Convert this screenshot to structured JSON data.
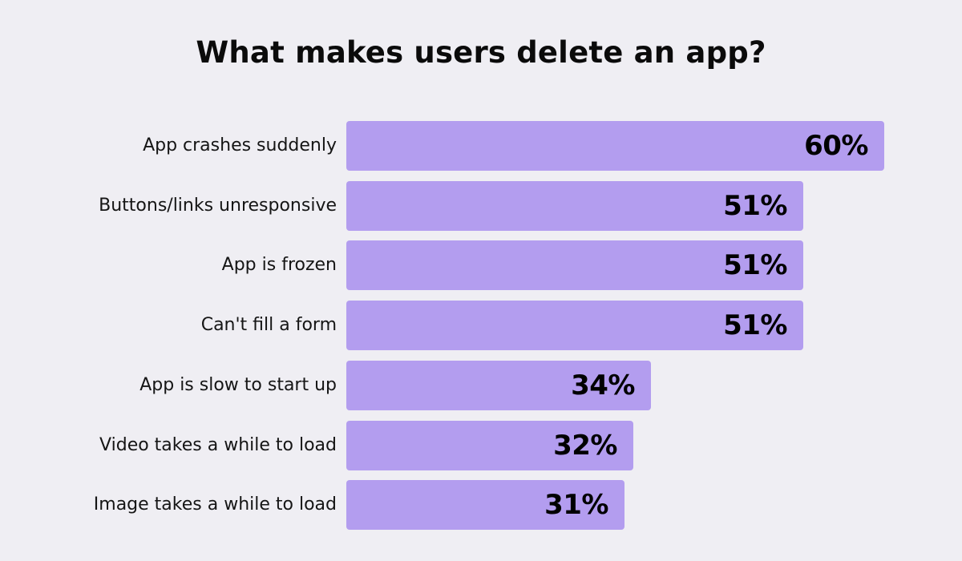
{
  "title": "What makes users delete an app?",
  "colors": {
    "background": "#EFEEF3",
    "bar": "#B39DEF",
    "text": "#111111"
  },
  "rows": [
    {
      "label": "App crashes suddenly",
      "value": 60,
      "value_label": "60%"
    },
    {
      "label": "Buttons/links unresponsive",
      "value": 51,
      "value_label": "51%"
    },
    {
      "label": "App is frozen",
      "value": 51,
      "value_label": "51%"
    },
    {
      "label": "Can't fill a form",
      "value": 51,
      "value_label": "51%"
    },
    {
      "label": "App is slow to start up",
      "value": 34,
      "value_label": "34%"
    },
    {
      "label": "Video takes a while to load",
      "value": 32,
      "value_label": "32%"
    },
    {
      "label": "Image takes a while to load",
      "value": 31,
      "value_label": "31%"
    }
  ],
  "chart_data": {
    "type": "bar",
    "orientation": "horizontal",
    "title": "What makes users delete an app?",
    "categories": [
      "App crashes suddenly",
      "Buttons/links unresponsive",
      "App is frozen",
      "Can't fill a form",
      "App is slow to start up",
      "Video takes a while to load",
      "Image takes a while to load"
    ],
    "values": [
      60,
      51,
      51,
      51,
      34,
      32,
      31
    ],
    "value_labels": [
      "60%",
      "51%",
      "51%",
      "51%",
      "34%",
      "32%",
      "31%"
    ],
    "xlabel": "",
    "ylabel": "",
    "unit": "%",
    "grid": false,
    "legend": null,
    "axes_visible": false,
    "bar_color": "#B39DEF"
  }
}
